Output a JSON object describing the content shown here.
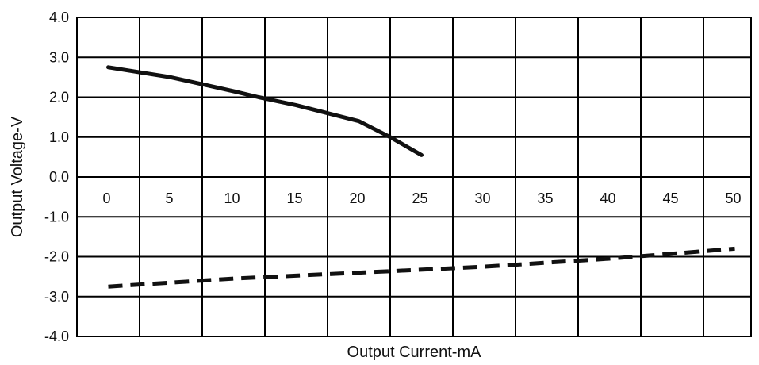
{
  "chart_data": {
    "type": "line",
    "title": "",
    "xlabel": "Output Current-mA",
    "ylabel": "Output Voltage-V",
    "xlim": [
      0,
      50
    ],
    "ylim": [
      -4.0,
      4.0
    ],
    "x_ticks": [
      "0",
      "5",
      "10",
      "15",
      "20",
      "25",
      "30",
      "35",
      "40",
      "45",
      "50"
    ],
    "y_ticks": [
      "4.0",
      "3.0",
      "2.0",
      "1.0",
      "0.0",
      "-1.0",
      "-2.0",
      "-3.0",
      "-4.0"
    ],
    "grid": true,
    "series": [
      {
        "style": "solid",
        "color": "#111111",
        "x": [
          0,
          5,
          10,
          12,
          15,
          20,
          22.5,
          25
        ],
        "y": [
          2.75,
          2.5,
          2.15,
          2.0,
          1.8,
          1.4,
          1.0,
          0.55
        ]
      },
      {
        "style": "dashed",
        "color": "#111111",
        "x": [
          0,
          10,
          20,
          30,
          40,
          50
        ],
        "y": [
          -2.75,
          -2.55,
          -2.4,
          -2.25,
          -2.05,
          -1.8
        ]
      }
    ]
  }
}
